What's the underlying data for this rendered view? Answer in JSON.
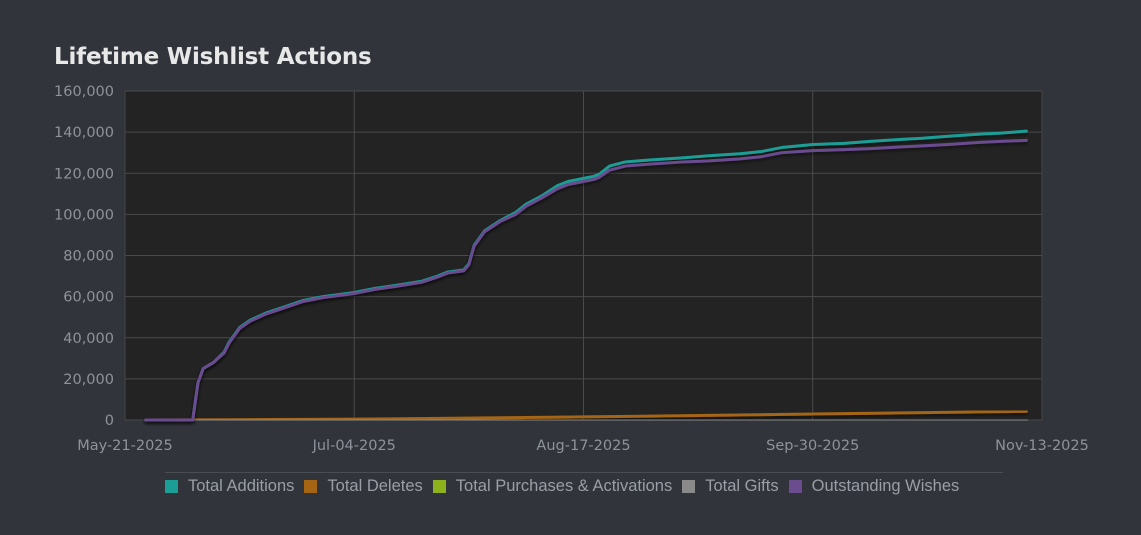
{
  "title": "Lifetime Wishlist Actions",
  "colors": {
    "background": "#31343b",
    "plot_background": "#232323",
    "grid": "#4a4a4a",
    "axis_text": "#8e929a",
    "title": "#e8e8e8"
  },
  "chart_data": {
    "type": "line",
    "title": "Lifetime Wishlist Actions",
    "xlabel": "",
    "ylabel": "",
    "x_axis": {
      "type": "date",
      "range": [
        "2025-05-21",
        "2025-11-13"
      ],
      "ticks": [
        "2025-05-21",
        "2025-07-04",
        "2025-08-17",
        "2025-09-30",
        "2025-11-13"
      ],
      "tick_labels": [
        "May-21-2025",
        "Jul-04-2025",
        "Aug-17-2025",
        "Sep-30-2025",
        "Nov-13-2025"
      ]
    },
    "y_axis": {
      "range": [
        0,
        160000
      ],
      "ticks": [
        0,
        20000,
        40000,
        60000,
        80000,
        100000,
        120000,
        140000,
        160000
      ],
      "tick_labels": [
        "0",
        "20,000",
        "40,000",
        "60,000",
        "80,000",
        "100,000",
        "120,000",
        "140,000",
        "160,000"
      ]
    },
    "grid": true,
    "legend_position": "bottom",
    "series": [
      {
        "name": "Total Additions",
        "color": "#1a9e96",
        "points": [
          [
            "2025-05-25",
            0
          ],
          [
            "2025-06-03",
            0
          ],
          [
            "2025-06-04",
            18000
          ],
          [
            "2025-06-05",
            25000
          ],
          [
            "2025-06-07",
            28000
          ],
          [
            "2025-06-09",
            33000
          ],
          [
            "2025-06-10",
            38000
          ],
          [
            "2025-06-12",
            45000
          ],
          [
            "2025-06-14",
            48500
          ],
          [
            "2025-06-17",
            52000
          ],
          [
            "2025-06-20",
            54500
          ],
          [
            "2025-06-24",
            58000
          ],
          [
            "2025-06-28",
            60000
          ],
          [
            "2025-07-04",
            62000
          ],
          [
            "2025-07-08",
            64000
          ],
          [
            "2025-07-12",
            65500
          ],
          [
            "2025-07-17",
            67500
          ],
          [
            "2025-07-20",
            70000
          ],
          [
            "2025-07-22",
            72000
          ],
          [
            "2025-07-25",
            73000
          ],
          [
            "2025-07-26",
            76000
          ],
          [
            "2025-07-27",
            85000
          ],
          [
            "2025-07-29",
            92000
          ],
          [
            "2025-08-01",
            97000
          ],
          [
            "2025-08-04",
            101000
          ],
          [
            "2025-08-06",
            105000
          ],
          [
            "2025-08-09",
            109000
          ],
          [
            "2025-08-12",
            114000
          ],
          [
            "2025-08-14",
            116000
          ],
          [
            "2025-08-17",
            117500
          ],
          [
            "2025-08-19",
            118500
          ],
          [
            "2025-08-20",
            119500
          ],
          [
            "2025-08-22",
            123500
          ],
          [
            "2025-08-25",
            125500
          ],
          [
            "2025-08-30",
            126500
          ],
          [
            "2025-09-05",
            127500
          ],
          [
            "2025-09-10",
            128500
          ],
          [
            "2025-09-16",
            129500
          ],
          [
            "2025-09-20",
            130500
          ],
          [
            "2025-09-24",
            132500
          ],
          [
            "2025-09-30",
            134000
          ],
          [
            "2025-10-06",
            134500
          ],
          [
            "2025-10-11",
            135500
          ],
          [
            "2025-10-17",
            136500
          ],
          [
            "2025-10-21",
            137000
          ],
          [
            "2025-10-26",
            138000
          ],
          [
            "2025-11-01",
            139000
          ],
          [
            "2025-11-05",
            139500
          ],
          [
            "2025-11-10",
            140500
          ]
        ]
      },
      {
        "name": "Total Deletes",
        "color": "#a56512",
        "points": [
          [
            "2025-05-25",
            0
          ],
          [
            "2025-06-04",
            50
          ],
          [
            "2025-07-04",
            400
          ],
          [
            "2025-08-17",
            1500
          ],
          [
            "2025-09-30",
            2900
          ],
          [
            "2025-11-10",
            4200
          ]
        ]
      },
      {
        "name": "Total Purchases & Activations",
        "color": "#8cb31b",
        "points": [
          [
            "2025-05-25",
            0
          ],
          [
            "2025-07-04",
            20
          ],
          [
            "2025-09-30",
            80
          ],
          [
            "2025-11-10",
            120
          ]
        ]
      },
      {
        "name": "Total Gifts",
        "color": "#8a8a8a",
        "points": [
          [
            "2025-05-25",
            0
          ],
          [
            "2025-11-10",
            10
          ]
        ]
      },
      {
        "name": "Outstanding Wishes",
        "color": "#6b4c8f",
        "points": [
          [
            "2025-05-25",
            0
          ],
          [
            "2025-06-03",
            0
          ],
          [
            "2025-06-04",
            18000
          ],
          [
            "2025-06-05",
            25000
          ],
          [
            "2025-06-07",
            28000
          ],
          [
            "2025-06-09",
            32500
          ],
          [
            "2025-06-10",
            37500
          ],
          [
            "2025-06-12",
            44500
          ],
          [
            "2025-06-14",
            48000
          ],
          [
            "2025-06-17",
            51500
          ],
          [
            "2025-06-20",
            54000
          ],
          [
            "2025-06-24",
            57500
          ],
          [
            "2025-06-28",
            59500
          ],
          [
            "2025-07-04",
            61500
          ],
          [
            "2025-07-08",
            63500
          ],
          [
            "2025-07-12",
            65000
          ],
          [
            "2025-07-17",
            67000
          ],
          [
            "2025-07-20",
            69500
          ],
          [
            "2025-07-22",
            71500
          ],
          [
            "2025-07-25",
            72500
          ],
          [
            "2025-07-26",
            75500
          ],
          [
            "2025-07-27",
            84500
          ],
          [
            "2025-07-29",
            91500
          ],
          [
            "2025-08-01",
            96500
          ],
          [
            "2025-08-04",
            100000
          ],
          [
            "2025-08-06",
            104000
          ],
          [
            "2025-08-09",
            108000
          ],
          [
            "2025-08-12",
            112500
          ],
          [
            "2025-08-14",
            114500
          ],
          [
            "2025-08-17",
            116000
          ],
          [
            "2025-08-19",
            117000
          ],
          [
            "2025-08-20",
            118000
          ],
          [
            "2025-08-22",
            121500
          ],
          [
            "2025-08-25",
            123500
          ],
          [
            "2025-08-30",
            124500
          ],
          [
            "2025-09-05",
            125500
          ],
          [
            "2025-09-10",
            126000
          ],
          [
            "2025-09-16",
            127000
          ],
          [
            "2025-09-20",
            128000
          ],
          [
            "2025-09-24",
            130000
          ],
          [
            "2025-09-30",
            131000
          ],
          [
            "2025-10-06",
            131500
          ],
          [
            "2025-10-11",
            132000
          ],
          [
            "2025-10-17",
            132800
          ],
          [
            "2025-10-21",
            133300
          ],
          [
            "2025-10-26",
            134000
          ],
          [
            "2025-11-01",
            135000
          ],
          [
            "2025-11-05",
            135500
          ],
          [
            "2025-11-10",
            136000
          ]
        ]
      }
    ]
  },
  "legend": {
    "items": [
      {
        "label": "Total Additions",
        "color": "#1a9e96"
      },
      {
        "label": "Total Deletes",
        "color": "#a56512"
      },
      {
        "label": "Total Purchases & Activations",
        "color": "#8cb31b"
      },
      {
        "label": "Total Gifts",
        "color": "#8a8a8a"
      },
      {
        "label": "Outstanding Wishes",
        "color": "#6b4c8f"
      }
    ]
  }
}
